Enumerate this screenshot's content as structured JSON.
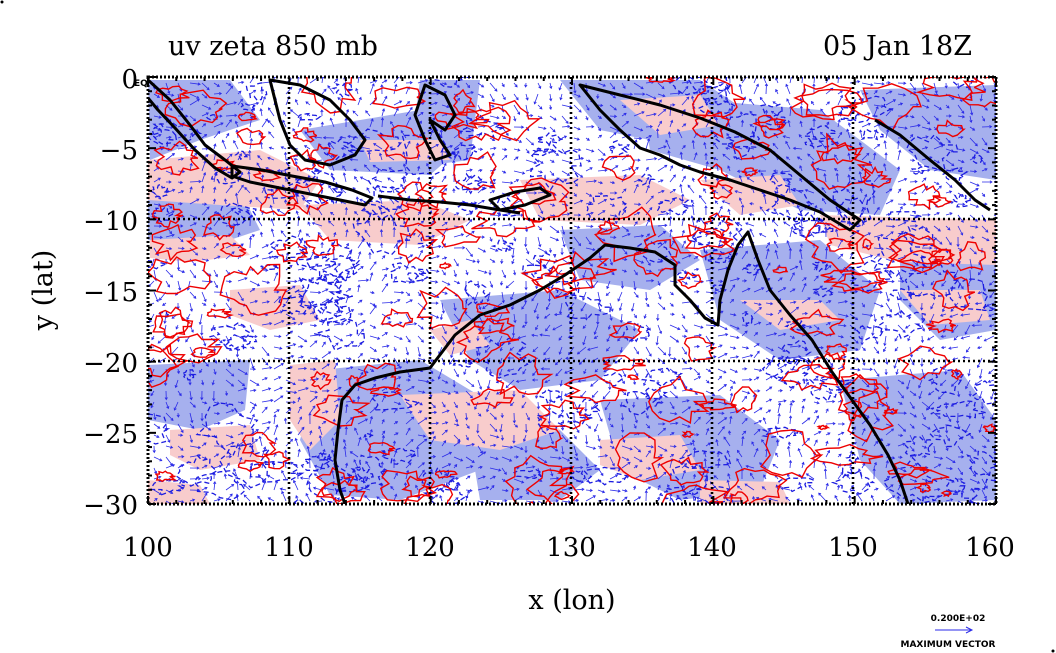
{
  "title": "uv zeta 850 mb",
  "time_label": "05 Jan 18Z",
  "xlabel": "x (lon)",
  "ylabel": "y (lat)",
  "corner_label": "EQ",
  "vector_legend": {
    "value": "0.200E+02",
    "caption": "MAXIMUM VECTOR"
  },
  "colors": {
    "positive_fill": "#f8cccc",
    "negative_fill": "#a6b0ee",
    "positive_contour": "#ee0000",
    "negative_contour": "#1c1ce0",
    "vector": "#2a2ae8",
    "grid": "#000000",
    "coast": "#000000"
  },
  "chart_data": {
    "type": "map",
    "projection": "lat-lon",
    "xlim": [
      100,
      160
    ],
    "ylim": [
      -30,
      0
    ],
    "x_ticks": [
      "100",
      "110",
      "120",
      "130",
      "140",
      "150",
      "160"
    ],
    "y_ticks": [
      "0",
      "−5",
      "−10",
      "−15",
      "−20",
      "−25",
      "−30"
    ],
    "x_tick_values": [
      100,
      110,
      120,
      130,
      140,
      150,
      160
    ],
    "y_tick_values": [
      0,
      -5,
      -10,
      -15,
      -20,
      -25,
      -30
    ],
    "grid_lon": [
      110,
      120,
      130,
      140,
      150
    ],
    "grid_lat": [
      -10,
      -20
    ],
    "fields": [
      "wind vectors (u, v)",
      "relative vorticity zeta"
    ],
    "level": "850 mb"
  }
}
